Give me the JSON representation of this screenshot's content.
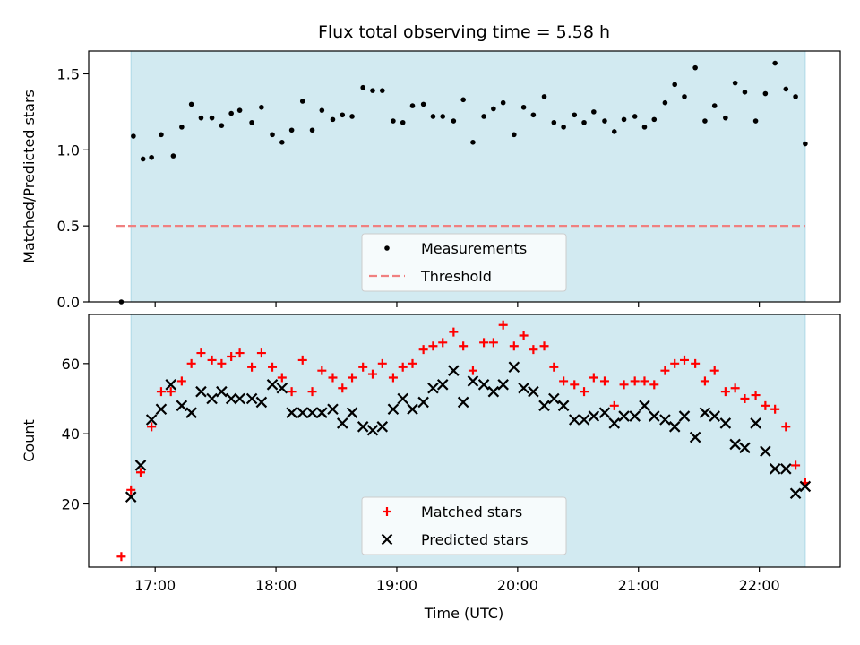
{
  "chart_data": {
    "title": "Flux total observing time = 5.58 h",
    "xlabel": "Time (UTC)",
    "x_ticks": [
      "17:00",
      "18:00",
      "19:00",
      "20:00",
      "21:00",
      "22:00"
    ],
    "x_unit": "hours since 00:00 UTC",
    "xlim": [
      16.45,
      22.67
    ],
    "shaded_span": [
      16.8,
      22.38
    ],
    "shade_color": "#add8e6",
    "panels": [
      {
        "type": "scatter",
        "ylabel": "Matched/Predicted stars",
        "ylim": [
          0.0,
          1.65
        ],
        "y_ticks": [
          0.0,
          0.5,
          1.0,
          1.5
        ],
        "y_tick_labels": [
          "0.0",
          "0.5",
          "1.0",
          "1.5"
        ],
        "legend_position": "bottom-center",
        "series": [
          {
            "name": "Measurements",
            "marker": "dot",
            "color": "#000000",
            "x": [
              16.72,
              16.82,
              16.9,
              16.97,
              17.05,
              17.15,
              17.22,
              17.3,
              17.38,
              17.47,
              17.55,
              17.63,
              17.7,
              17.8,
              17.88,
              17.97,
              18.05,
              18.13,
              18.22,
              18.3,
              18.38,
              18.47,
              18.55,
              18.63,
              18.72,
              18.8,
              18.88,
              18.97,
              19.05,
              19.13,
              19.22,
              19.3,
              19.38,
              19.47,
              19.55,
              19.63,
              19.72,
              19.8,
              19.88,
              19.97,
              20.05,
              20.13,
              20.22,
              20.3,
              20.38,
              20.47,
              20.55,
              20.63,
              20.72,
              20.8,
              20.88,
              20.97,
              21.05,
              21.13,
              21.22,
              21.3,
              21.38,
              21.47,
              21.55,
              21.63,
              21.72,
              21.8,
              21.88,
              21.97,
              22.05,
              22.13,
              22.22,
              22.3,
              22.38
            ],
            "y": [
              0.0,
              1.09,
              0.94,
              0.95,
              1.1,
              0.96,
              1.15,
              1.3,
              1.21,
              1.21,
              1.16,
              1.24,
              1.26,
              1.18,
              1.28,
              1.1,
              1.05,
              1.13,
              1.32,
              1.13,
              1.26,
              1.2,
              1.23,
              1.22,
              1.41,
              1.39,
              1.39,
              1.19,
              1.18,
              1.29,
              1.3,
              1.22,
              1.22,
              1.19,
              1.33,
              1.05,
              1.22,
              1.27,
              1.31,
              1.1,
              1.28,
              1.23,
              1.35,
              1.18,
              1.15,
              1.23,
              1.18,
              1.25,
              1.19,
              1.12,
              1.2,
              1.22,
              1.15,
              1.2,
              1.31,
              1.43,
              1.35,
              1.54,
              1.19,
              1.29,
              1.21,
              1.44,
              1.38,
              1.19,
              1.37,
              1.57,
              1.4,
              1.35,
              1.04
            ]
          },
          {
            "name": "Threshold",
            "marker": "dashed-line",
            "color": "#f08080",
            "x": [
              16.68,
              22.38
            ],
            "y": [
              0.5,
              0.5
            ]
          }
        ]
      },
      {
        "type": "scatter",
        "ylabel": "Count",
        "ylim": [
          2,
          74
        ],
        "y_ticks": [
          20,
          40,
          60
        ],
        "y_tick_labels": [
          "20",
          "40",
          "60"
        ],
        "legend_position": "bottom-center",
        "series": [
          {
            "name": "Matched stars",
            "marker": "plus",
            "color": "#ff0000",
            "x": [
              16.72,
              16.8,
              16.88,
              16.97,
              17.05,
              17.13,
              17.22,
              17.3,
              17.38,
              17.47,
              17.55,
              17.63,
              17.7,
              17.8,
              17.88,
              17.97,
              18.05,
              18.13,
              18.22,
              18.3,
              18.38,
              18.47,
              18.55,
              18.63,
              18.72,
              18.8,
              18.88,
              18.97,
              19.05,
              19.13,
              19.22,
              19.3,
              19.38,
              19.47,
              19.55,
              19.63,
              19.72,
              19.8,
              19.88,
              19.97,
              20.05,
              20.13,
              20.22,
              20.3,
              20.38,
              20.47,
              20.55,
              20.63,
              20.72,
              20.8,
              20.88,
              20.97,
              21.05,
              21.13,
              21.22,
              21.3,
              21.38,
              21.47,
              21.55,
              21.63,
              21.72,
              21.8,
              21.88,
              21.97,
              22.05,
              22.13,
              22.22,
              22.3,
              22.38
            ],
            "y": [
              5,
              24,
              29,
              42,
              52,
              52,
              55,
              60,
              63,
              61,
              60,
              62,
              63,
              59,
              63,
              59,
              56,
              52,
              61,
              52,
              58,
              56,
              53,
              56,
              59,
              57,
              60,
              56,
              59,
              60,
              64,
              65,
              66,
              69,
              65,
              58,
              66,
              66,
              71,
              65,
              68,
              64,
              65,
              59,
              55,
              54,
              52,
              56,
              55,
              48,
              54,
              55,
              55,
              54,
              58,
              60,
              61,
              60,
              55,
              58,
              52,
              53,
              50,
              51,
              48,
              47,
              42,
              31,
              26
            ]
          },
          {
            "name": "Predicted stars",
            "marker": "x",
            "color": "#000000",
            "x": [
              16.8,
              16.88,
              16.97,
              17.05,
              17.13,
              17.22,
              17.3,
              17.38,
              17.47,
              17.55,
              17.63,
              17.7,
              17.8,
              17.88,
              17.97,
              18.05,
              18.13,
              18.22,
              18.3,
              18.38,
              18.47,
              18.55,
              18.63,
              18.72,
              18.8,
              18.88,
              18.97,
              19.05,
              19.13,
              19.22,
              19.3,
              19.38,
              19.47,
              19.55,
              19.63,
              19.72,
              19.8,
              19.88,
              19.97,
              20.05,
              20.13,
              20.22,
              20.3,
              20.38,
              20.47,
              20.55,
              20.63,
              20.72,
              20.8,
              20.88,
              20.97,
              21.05,
              21.13,
              21.22,
              21.3,
              21.38,
              21.47,
              21.55,
              21.63,
              21.72,
              21.8,
              21.88,
              21.97,
              22.05,
              22.13,
              22.22,
              22.3,
              22.38
            ],
            "y": [
              22,
              31,
              44,
              47,
              54,
              48,
              46,
              52,
              50,
              52,
              50,
              50,
              50,
              49,
              54,
              53,
              46,
              46,
              46,
              46,
              47,
              43,
              46,
              42,
              41,
              42,
              47,
              50,
              47,
              49,
              53,
              54,
              58,
              49,
              55,
              54,
              52,
              54,
              59,
              53,
              52,
              48,
              50,
              48,
              44,
              44,
              45,
              46,
              43,
              45,
              45,
              48,
              45,
              44,
              42,
              45,
              39,
              46,
              45,
              43,
              37,
              36,
              43,
              35,
              30,
              30,
              23,
              25
            ]
          }
        ]
      }
    ]
  }
}
